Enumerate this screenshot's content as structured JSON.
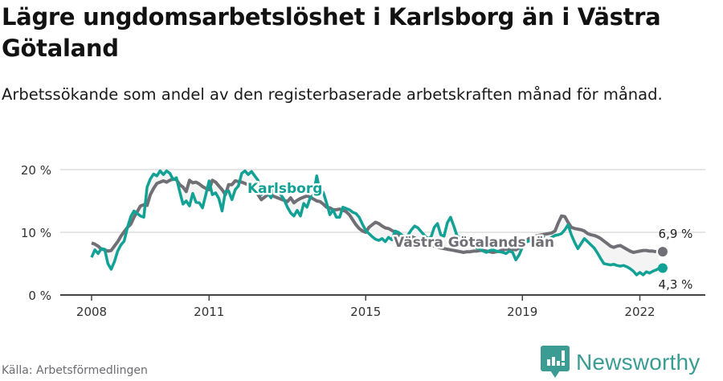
{
  "header": {
    "title": "Lägre ungdomsarbetslöshet i Karlsborg än i Västra Götaland",
    "subtitle": "Arbetssökande som andel av den registerbaserade arbetskraften månad för månad."
  },
  "footer": {
    "source": "Källa: Arbetsförmedlingen",
    "brand": "Newsworthy"
  },
  "colors": {
    "karlsborg": "#12a295",
    "vastra_gotaland": "#706f75",
    "grid": "#dddddd",
    "axis": "#333333"
  },
  "chart_data": {
    "type": "line",
    "title": "Lägre ungdomsarbetslöshet i Karlsborg än i Västra Götaland",
    "subtitle": "Arbetssökande som andel av den registerbaserade arbetskraften månad för månad.",
    "xlabel": "",
    "ylabel": "",
    "ylim": [
      0,
      20
    ],
    "yticks": [
      "0 %",
      "10 %",
      "20 %"
    ],
    "xticks": [
      "2008",
      "2011",
      "2015",
      "2019",
      "2022"
    ],
    "grid": true,
    "x_start": "2008-01",
    "x_end": "2022-12",
    "frequency": "monthly",
    "series": [
      {
        "name": "Karlsborg",
        "label": "Karlsborg",
        "end_label": "4,3 %",
        "values": [
          6.0,
          7.2,
          6.6,
          7.4,
          7.3,
          5.0,
          4.1,
          5.3,
          7.0,
          8.0,
          8.6,
          10.8,
          12.5,
          13.4,
          13.0,
          12.6,
          12.4,
          17.2,
          18.5,
          19.3,
          19.0,
          19.8,
          19.2,
          19.8,
          19.4,
          18.4,
          18.7,
          16.5,
          14.5,
          15.0,
          14.2,
          16.2,
          14.8,
          14.7,
          13.9,
          16.0,
          18.2,
          16.0,
          16.3,
          15.4,
          13.4,
          16.5,
          16.6,
          15.2,
          16.8,
          17.4,
          19.4,
          19.8,
          19.2,
          19.7,
          19.0,
          18.3,
          16.0,
          16.8,
          16.2,
          15.5,
          17.8,
          17.0,
          16.0,
          15.2,
          14.0,
          13.1,
          12.6,
          13.5,
          12.6,
          14.6,
          14.0,
          15.5,
          16.0,
          19.0,
          16.4,
          16.4,
          14.7,
          12.8,
          13.6,
          12.4,
          12.4,
          14.0,
          13.8,
          13.6,
          13.2,
          13.0,
          12.4,
          11.3,
          10.3,
          9.8,
          9.3,
          8.9,
          8.7,
          9.0,
          8.5,
          9.2,
          8.8,
          10.2,
          10.0,
          9.6,
          9.2,
          9.6,
          10.4,
          11.0,
          10.7,
          10.1,
          9.5,
          9.0,
          9.2,
          10.8,
          11.4,
          9.6,
          9.4,
          11.5,
          12.4,
          11.0,
          9.4,
          9.2,
          9.0,
          8.6,
          8.0,
          8.2,
          7.5,
          7.4,
          7.0,
          6.8,
          7.1,
          7.2,
          7.0,
          6.9,
          6.8,
          6.6,
          7.0,
          6.8,
          5.6,
          6.4,
          7.6,
          8.4,
          8.6,
          9.0,
          8.6,
          9.0,
          9.4,
          9.0,
          8.8,
          9.2,
          9.5,
          9.6,
          9.8,
          10.4,
          11.2,
          9.6,
          8.4,
          7.4,
          8.2,
          9.0,
          8.5,
          8.0,
          7.5,
          6.7,
          5.8,
          5.0,
          4.9,
          4.8,
          4.9,
          4.7,
          4.6,
          4.7,
          4.5,
          4.2,
          3.8,
          3.2,
          3.6,
          3.2,
          3.7,
          3.5,
          3.8,
          4.0,
          4.3,
          4.3
        ]
      },
      {
        "name": "Västra Götalands län",
        "label": "Västra Götalands län",
        "end_label": "6,9 %",
        "values": [
          8.3,
          8.1,
          7.8,
          7.3,
          7.2,
          7.0,
          7.1,
          7.8,
          8.5,
          9.4,
          10.1,
          10.8,
          11.3,
          12.4,
          13.3,
          14.2,
          14.4,
          14.3,
          16.0,
          17.0,
          17.8,
          18.0,
          18.2,
          18.0,
          18.3,
          18.5,
          18.4,
          17.6,
          17.2,
          16.5,
          18.3,
          17.9,
          18.0,
          17.7,
          17.3,
          17.0,
          16.8,
          18.3,
          18.0,
          17.4,
          16.8,
          16.0,
          17.6,
          17.6,
          18.2,
          18.1,
          18.0,
          17.8,
          17.6,
          17.3,
          16.9,
          16.0,
          15.2,
          15.6,
          16.0,
          15.9,
          15.7,
          15.5,
          15.3,
          15.1,
          14.9,
          15.5,
          14.7,
          15.1,
          15.4,
          15.6,
          15.8,
          15.6,
          15.3,
          15.0,
          14.9,
          14.5,
          14.0,
          13.9,
          13.6,
          13.6,
          13.7,
          13.5,
          13.3,
          12.8,
          12.0,
          11.2,
          10.6,
          10.2,
          10.0,
          10.8,
          11.2,
          11.6,
          11.4,
          11.0,
          10.7,
          10.6,
          10.3,
          10.0,
          9.6,
          9.3,
          9.4,
          9.2,
          9.3,
          9.1,
          8.8,
          8.6,
          8.4,
          8.2,
          8.0,
          7.8,
          7.6,
          7.5,
          7.4,
          7.3,
          7.2,
          7.1,
          7.0,
          6.9,
          6.8,
          6.9,
          6.9,
          7.0,
          7.0,
          7.1,
          7.1,
          7.0,
          6.9,
          6.8,
          6.9,
          7.0,
          7.2,
          7.3,
          7.4,
          7.3,
          7.2,
          7.5,
          8.0,
          8.6,
          9.0,
          9.2,
          9.4,
          9.5,
          9.6,
          9.7,
          9.8,
          9.9,
          10.2,
          11.5,
          12.6,
          12.5,
          11.6,
          10.8,
          10.6,
          10.5,
          10.4,
          10.2,
          9.8,
          9.6,
          9.5,
          9.3,
          9.0,
          8.6,
          8.2,
          7.8,
          7.6,
          7.8,
          7.9,
          7.6,
          7.3,
          7.0,
          6.8,
          6.9,
          7.0,
          7.1,
          7.1,
          7.0,
          7.0,
          6.9
        ]
      }
    ],
    "annotations": [
      {
        "text": "Karlsborg",
        "series": "Karlsborg"
      },
      {
        "text": "Västra Götalands län",
        "series": "Västra Götalands län"
      },
      {
        "text": "6,9 %",
        "series": "Västra Götalands län",
        "position": "end"
      },
      {
        "text": "4,3 %",
        "series": "Karlsborg",
        "position": "end"
      }
    ]
  }
}
